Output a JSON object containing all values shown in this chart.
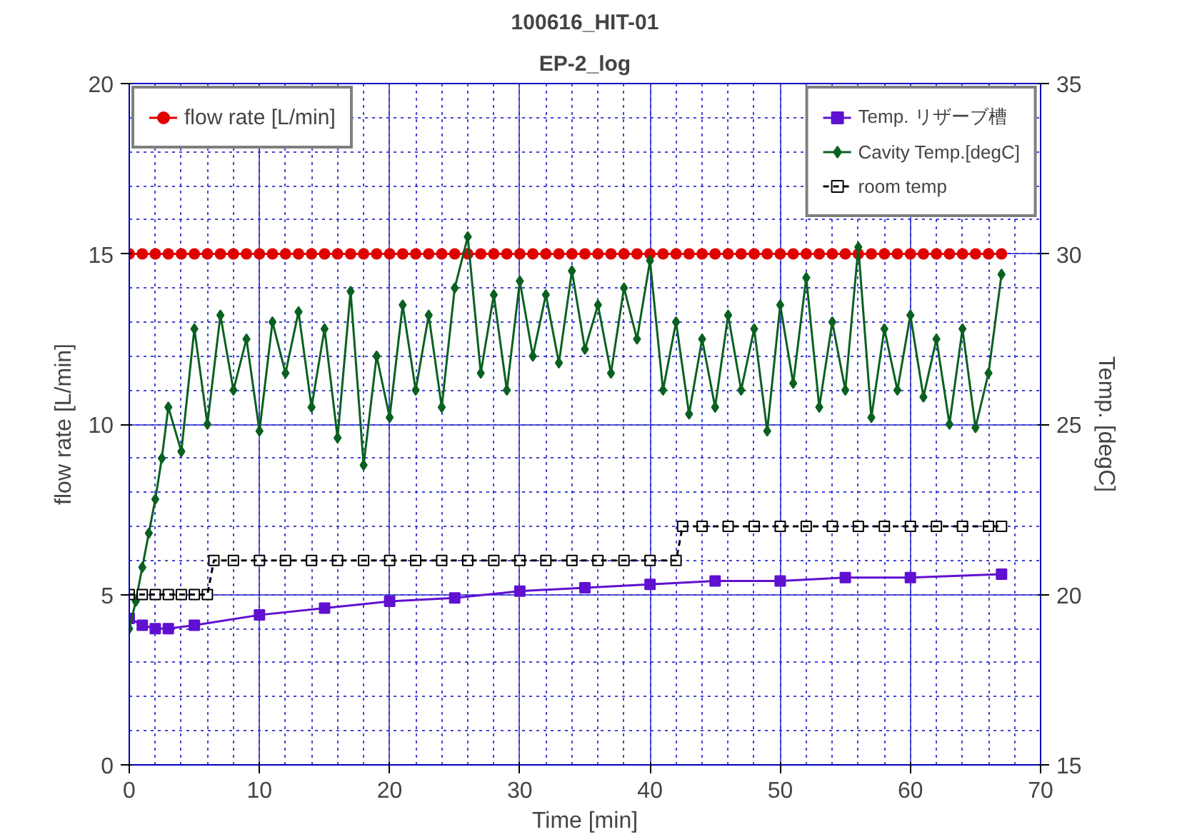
{
  "chart_data": {
    "type": "line",
    "title": "100616_HIT-01",
    "subtitle": "EP-2_log",
    "xlabel": "Time [min]",
    "ylabel": "flow rate [L/min]",
    "y2label": "Temp. [degC]",
    "xlim": [
      0,
      70
    ],
    "xticks": [
      0,
      10,
      20,
      30,
      40,
      50,
      60,
      70
    ],
    "ylim": [
      0,
      20
    ],
    "yticks": [
      0,
      5,
      10,
      15,
      20
    ],
    "y2lim": [
      15,
      35
    ],
    "y2ticks": [
      15,
      20,
      25,
      30,
      35
    ],
    "grid": true,
    "legend": "top",
    "line_style": "solid",
    "series": [
      {
        "name": "flow rate [L/min]",
        "color": "#e00000",
        "marker": "circle",
        "x": [
          0,
          1,
          2,
          3,
          4,
          5,
          6,
          7,
          8,
          9,
          10,
          11,
          12,
          13,
          14,
          15,
          16,
          17,
          18,
          19,
          20,
          21,
          22,
          23,
          24,
          25,
          26,
          27,
          28,
          29,
          30,
          31,
          32,
          33,
          34,
          35,
          36,
          37,
          38,
          39,
          40,
          41,
          42,
          43,
          44,
          45,
          46,
          47,
          48,
          49,
          50,
          51,
          52,
          53,
          54,
          55,
          56,
          57,
          58,
          59,
          60,
          61,
          62,
          63,
          64,
          65,
          66,
          67
        ],
        "values": [
          15,
          15,
          15,
          15,
          15,
          15,
          15,
          15,
          15,
          15,
          15,
          15,
          15,
          15,
          15,
          15,
          15,
          15,
          15,
          15,
          15,
          15,
          15,
          15,
          15,
          15,
          15,
          15,
          15,
          15,
          15,
          15,
          15,
          15,
          15,
          15,
          15,
          15,
          15,
          15,
          15,
          15,
          15,
          15,
          15,
          15,
          15,
          15,
          15,
          15,
          15,
          15,
          15,
          15,
          15,
          15,
          15,
          15,
          15,
          15,
          15,
          15,
          15,
          15,
          15,
          15,
          15,
          15
        ]
      },
      {
        "name": "Temp. リザーブ槽",
        "color": "#6010d0",
        "marker": "square",
        "axis": "y2",
        "x": [
          0,
          1,
          2,
          3,
          5,
          10,
          15,
          20,
          25,
          30,
          35,
          40,
          45,
          50,
          55,
          60,
          67
        ],
        "values": [
          19.3,
          19.1,
          19.0,
          19.0,
          19.1,
          19.4,
          19.6,
          19.8,
          19.9,
          20.1,
          20.2,
          20.3,
          20.4,
          20.4,
          20.5,
          20.5,
          20.6
        ]
      },
      {
        "name": "Cavity Temp.[degC]",
        "color": "#0a6020",
        "marker": "diamond",
        "axis": "y2",
        "x": [
          0,
          0.5,
          1,
          1.5,
          2,
          2.5,
          3,
          4,
          5,
          6,
          7,
          8,
          9,
          10,
          11,
          12,
          13,
          14,
          15,
          16,
          17,
          18,
          19,
          20,
          21,
          22,
          23,
          24,
          25,
          26,
          27,
          28,
          29,
          30,
          31,
          32,
          33,
          34,
          35,
          36,
          37,
          38,
          39,
          40,
          41,
          42,
          43,
          44,
          45,
          46,
          47,
          48,
          49,
          50,
          51,
          52,
          53,
          54,
          55,
          56,
          57,
          58,
          59,
          60,
          61,
          62,
          63,
          64,
          65,
          66,
          67
        ],
        "values": [
          19.0,
          19.8,
          20.8,
          21.8,
          22.8,
          24.0,
          25.5,
          24.2,
          27.8,
          25.0,
          28.2,
          26.0,
          27.5,
          24.8,
          28.0,
          26.5,
          28.3,
          25.5,
          27.8,
          24.6,
          28.9,
          23.8,
          27.0,
          25.2,
          28.5,
          26.0,
          28.2,
          25.5,
          29.0,
          30.5,
          26.5,
          28.8,
          26.0,
          29.2,
          27.0,
          28.8,
          26.8,
          29.5,
          27.2,
          28.5,
          26.5,
          29.0,
          27.5,
          29.8,
          26.0,
          28.0,
          25.3,
          27.5,
          25.5,
          28.2,
          26.0,
          27.8,
          24.8,
          28.5,
          26.2,
          29.3,
          25.5,
          28.0,
          26.0,
          30.2,
          25.2,
          27.8,
          26.0,
          28.2,
          25.8,
          27.5,
          25.0,
          27.8,
          24.9,
          26.5,
          29.4
        ]
      },
      {
        "name": "room temp",
        "color": "#000000",
        "marker": "square",
        "line_style": "dashed",
        "axis": "y2",
        "x": [
          0,
          1,
          2,
          3,
          4,
          5,
          6,
          6.5,
          8,
          10,
          12,
          14,
          16,
          18,
          20,
          22,
          24,
          26,
          28,
          30,
          32,
          34,
          36,
          38,
          40,
          42,
          42.5,
          44,
          46,
          48,
          50,
          52,
          54,
          56,
          58,
          60,
          62,
          64,
          66,
          67
        ],
        "values": [
          20,
          20,
          20,
          20,
          20,
          20,
          20,
          21,
          21,
          21,
          21,
          21,
          21,
          21,
          21,
          21,
          21,
          21,
          21,
          21,
          21,
          21,
          21,
          21,
          21,
          21,
          22,
          22,
          22,
          22,
          22,
          22,
          22,
          22,
          22,
          22,
          22,
          22,
          22,
          22
        ]
      }
    ]
  }
}
